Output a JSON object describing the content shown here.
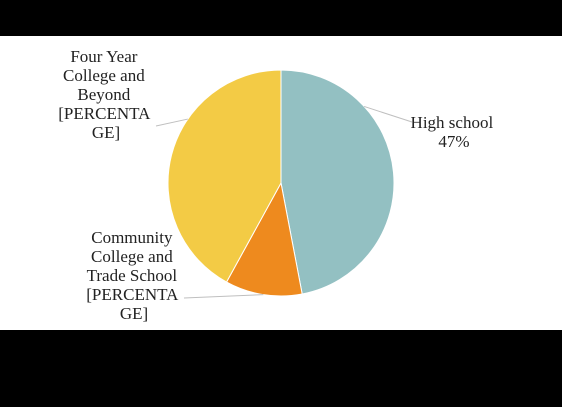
{
  "chart_data": {
    "type": "pie",
    "slices": [
      {
        "label_lines": [
          "High school",
          "47%"
        ],
        "value": 47,
        "color": "#93C0C2"
      },
      {
        "label_lines": [
          "Community",
          "College and",
          "Trade School",
          "[PERCENTA",
          "GE]"
        ],
        "value": 11,
        "color": "#EE8A1E"
      },
      {
        "label_lines": [
          "Four Year",
          "College and",
          "Beyond",
          "[PERCENTA",
          "GE]"
        ],
        "value": 42,
        "color": "#F3CB45"
      }
    ],
    "start_angle_deg": 0,
    "direction": "clockwise",
    "legend": "none",
    "leader_line_color": "#BFBFBF"
  }
}
